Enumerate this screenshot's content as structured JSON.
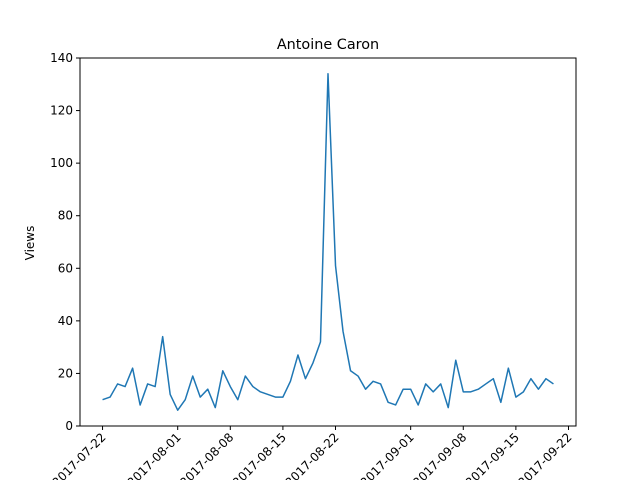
{
  "chart_data": {
    "type": "line",
    "title": "Antoine Caron",
    "y_label": "Views",
    "x": [
      "2017-07-22",
      "2017-07-23",
      "2017-07-24",
      "2017-07-25",
      "2017-07-26",
      "2017-07-27",
      "2017-07-28",
      "2017-07-29",
      "2017-07-30",
      "2017-07-31",
      "2017-08-01",
      "2017-08-02",
      "2017-08-03",
      "2017-08-04",
      "2017-08-05",
      "2017-08-06",
      "2017-08-07",
      "2017-08-08",
      "2017-08-09",
      "2017-08-10",
      "2017-08-11",
      "2017-08-12",
      "2017-08-13",
      "2017-08-14",
      "2017-08-15",
      "2017-08-16",
      "2017-08-17",
      "2017-08-18",
      "2017-08-19",
      "2017-08-20",
      "2017-08-21",
      "2017-08-22",
      "2017-08-23",
      "2017-08-24",
      "2017-08-25",
      "2017-08-26",
      "2017-08-27",
      "2017-08-28",
      "2017-08-29",
      "2017-08-30",
      "2017-08-31",
      "2017-09-01",
      "2017-09-02",
      "2017-09-03",
      "2017-09-04",
      "2017-09-05",
      "2017-09-06",
      "2017-09-07",
      "2017-09-08",
      "2017-09-09",
      "2017-09-10",
      "2017-09-11",
      "2017-09-12",
      "2017-09-13",
      "2017-09-14",
      "2017-09-15",
      "2017-09-16",
      "2017-09-17",
      "2017-09-18",
      "2017-09-19",
      "2017-09-20"
    ],
    "series": [
      {
        "name": "Views",
        "color": "#1f77b4",
        "values": [
          10,
          11,
          16,
          15,
          22,
          8,
          16,
          15,
          34,
          12,
          6,
          10,
          19,
          11,
          14,
          7,
          21,
          15,
          10,
          19,
          15,
          13,
          12,
          11,
          11,
          17,
          27,
          18,
          24,
          32,
          134,
          61,
          36,
          21,
          19,
          14,
          17,
          16,
          9,
          8,
          14,
          14,
          8,
          16,
          13,
          16,
          7,
          25,
          13,
          13,
          14,
          16,
          18,
          9,
          22,
          11,
          13,
          18,
          14,
          18,
          16
        ]
      }
    ],
    "xlim": [
      "2017-07-19",
      "2017-09-23"
    ],
    "xticks": [
      "2017-07-22",
      "2017-08-01",
      "2017-08-08",
      "2017-08-15",
      "2017-08-22",
      "2017-09-01",
      "2017-09-08",
      "2017-09-15",
      "2017-09-22"
    ],
    "ylim": [
      0,
      140
    ],
    "yticks": [
      0,
      20,
      40,
      60,
      80,
      100,
      120,
      140
    ],
    "grid": false
  }
}
